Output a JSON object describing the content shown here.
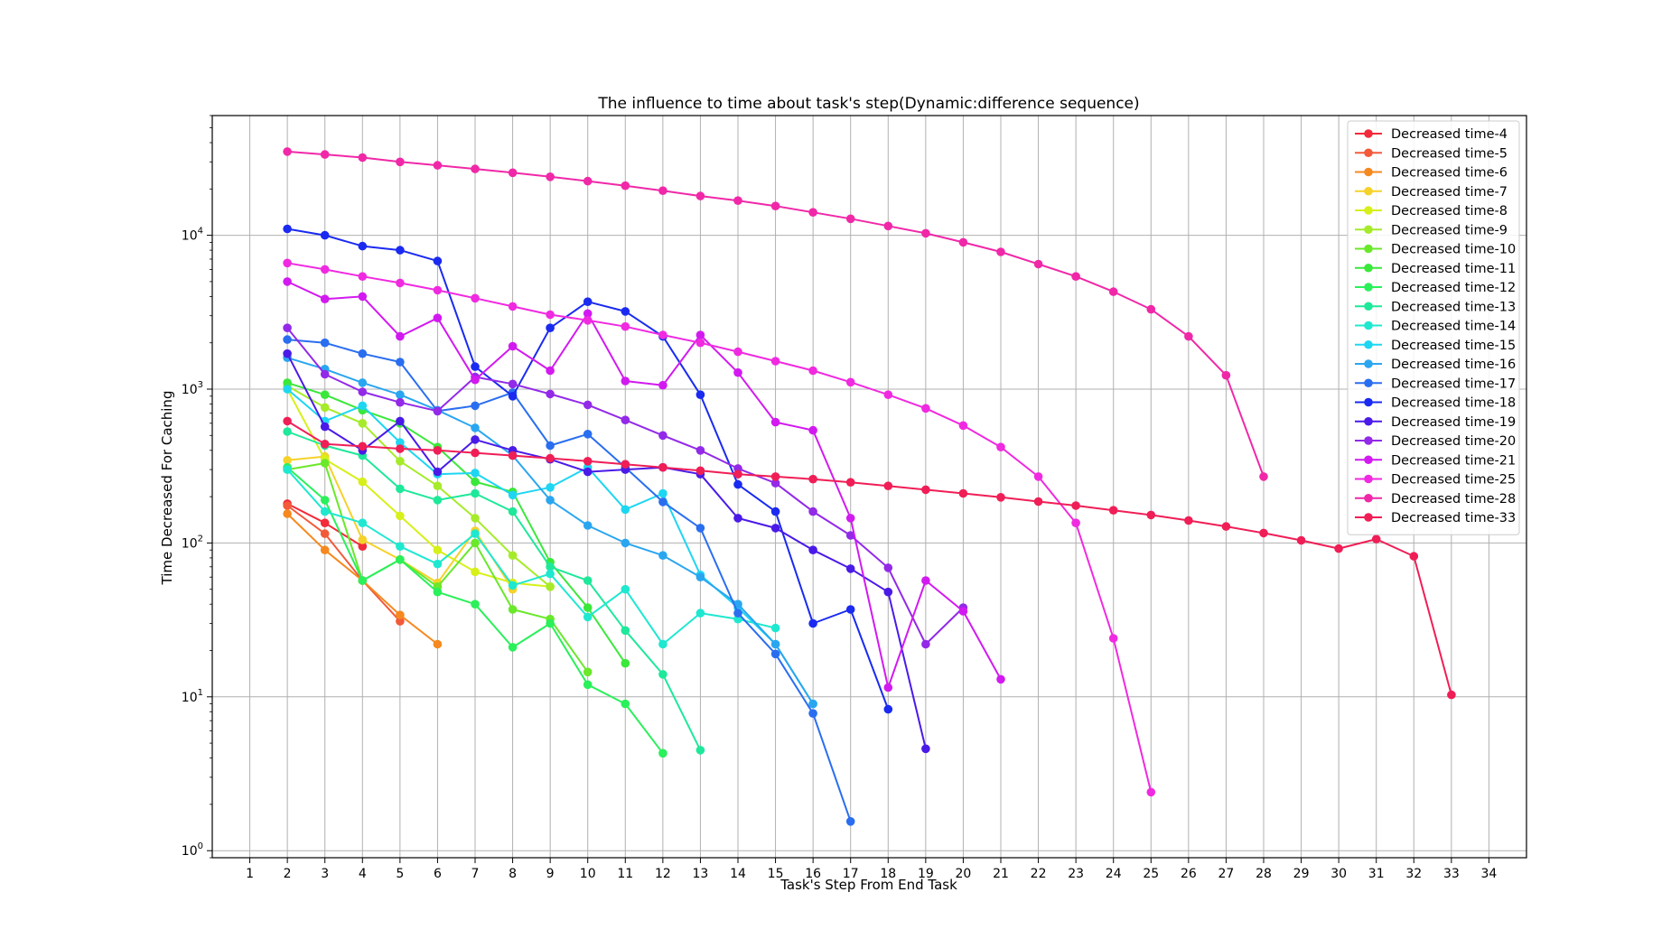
{
  "chart_data": {
    "type": "line",
    "title": "The influence to time about task's step(Dynamic:difference sequence)",
    "xlabel": "Task's Step From End Task",
    "ylabel": "Time Decreased For Caching",
    "xlim": [
      0,
      35
    ],
    "ylim": [
      0.9,
      60000
    ],
    "yscale": "log",
    "xticks": [
      1,
      2,
      3,
      4,
      5,
      6,
      7,
      8,
      9,
      10,
      11,
      12,
      13,
      14,
      15,
      16,
      17,
      18,
      19,
      20,
      21,
      22,
      23,
      24,
      25,
      26,
      27,
      28,
      29,
      30,
      31,
      32,
      33,
      34
    ],
    "yticks": [
      {
        "value": 1,
        "label": "10",
        "exp": "0"
      },
      {
        "value": 10,
        "label": "10",
        "exp": "1"
      },
      {
        "value": 100,
        "label": "10",
        "exp": "2"
      },
      {
        "value": 1000,
        "label": "10",
        "exp": "3"
      },
      {
        "value": 10000,
        "label": "10",
        "exp": "4"
      }
    ],
    "grid": true,
    "legend_position": "top-right",
    "series": [
      {
        "name": "Decreased time-4",
        "color": "#f22a3a",
        "x": [
          2,
          3,
          4
        ],
        "y": [
          180,
          135,
          95
        ]
      },
      {
        "name": "Decreased time-5",
        "color": "#f25a3a",
        "x": [
          2,
          3,
          4,
          5
        ],
        "y": [
          175,
          115,
          57,
          31
        ]
      },
      {
        "name": "Decreased time-6",
        "color": "#f5891f",
        "x": [
          2,
          3,
          4,
          5,
          6
        ],
        "y": [
          155,
          90,
          57,
          34,
          22
        ]
      },
      {
        "name": "Decreased time-7",
        "color": "#f5d22a",
        "x": [
          2,
          3,
          4,
          5,
          6,
          7,
          8
        ],
        "y": [
          345,
          365,
          105,
          78,
          55,
          120,
          50
        ]
      },
      {
        "name": "Decreased time-8",
        "color": "#d7f01a",
        "x": [
          2,
          3,
          4,
          5,
          6,
          7,
          8,
          9
        ],
        "y": [
          1000,
          350,
          250,
          150,
          90,
          65,
          55,
          52
        ]
      },
      {
        "name": "Decreased time-9",
        "color": "#a6eb2a",
        "x": [
          2,
          3,
          4,
          5,
          6,
          7,
          8,
          9
        ],
        "y": [
          1050,
          760,
          600,
          340,
          235,
          145,
          83,
          52
        ]
      },
      {
        "name": "Decreased time-10",
        "color": "#6ae82a",
        "x": [
          2,
          3,
          4,
          5,
          6,
          7,
          8,
          9,
          10
        ],
        "y": [
          300,
          330,
          57,
          78,
          52,
          100,
          37,
          32,
          14.5
        ]
      },
      {
        "name": "Decreased time-11",
        "color": "#3ae83a",
        "x": [
          2,
          3,
          4,
          5,
          6,
          7,
          8,
          9,
          10,
          11
        ],
        "y": [
          1100,
          920,
          730,
          600,
          420,
          250,
          215,
          75,
          38,
          16.5
        ]
      },
      {
        "name": "Decreased time-12",
        "color": "#2af05a",
        "x": [
          2,
          3,
          4,
          5,
          6,
          7,
          8,
          9,
          10,
          11,
          12
        ],
        "y": [
          310,
          190,
          57,
          78,
          48,
          40,
          21,
          30,
          12,
          9,
          4.3
        ]
      },
      {
        "name": "Decreased time-13",
        "color": "#1ee89a",
        "x": [
          2,
          3,
          4,
          5,
          6,
          7,
          8,
          9,
          10,
          11,
          12,
          13
        ],
        "y": [
          530,
          430,
          370,
          225,
          190,
          210,
          160,
          70,
          57,
          27,
          14,
          4.5
        ]
      },
      {
        "name": "Decreased time-14",
        "color": "#1fe8d0",
        "x": [
          2,
          3,
          4,
          5,
          6,
          7,
          8,
          9,
          10,
          11,
          12,
          13,
          14,
          15
        ],
        "y": [
          300,
          160,
          135,
          95,
          73,
          115,
          53,
          63,
          33,
          50,
          22,
          35,
          32,
          28
        ]
      },
      {
        "name": "Decreased time-15",
        "color": "#1ed6f2",
        "x": [
          2,
          3,
          4,
          5,
          6,
          7,
          8,
          9,
          10,
          11,
          12,
          13,
          14,
          15,
          16
        ],
        "y": [
          1000,
          620,
          780,
          450,
          280,
          285,
          205,
          230,
          310,
          165,
          210,
          62,
          38,
          22,
          9
        ]
      },
      {
        "name": "Decreased time-16",
        "color": "#2aa6f0",
        "x": [
          2,
          3,
          4,
          5,
          6,
          7,
          8,
          9,
          10,
          11,
          12,
          13,
          14,
          15,
          16
        ],
        "y": [
          1600,
          1350,
          1100,
          920,
          730,
          560,
          370,
          190,
          130,
          100,
          83,
          60,
          40,
          22,
          9
        ]
      },
      {
        "name": "Decreased time-17",
        "color": "#2a6ef0",
        "x": [
          2,
          3,
          4,
          5,
          6,
          7,
          8,
          9,
          10,
          11,
          12,
          13,
          14,
          15,
          16,
          17
        ],
        "y": [
          2100,
          2000,
          1700,
          1500,
          720,
          780,
          950,
          430,
          510,
          310,
          185,
          125,
          35,
          19,
          7.8,
          1.55
        ]
      },
      {
        "name": "Decreased time-18",
        "color": "#1a2af0",
        "x": [
          2,
          3,
          4,
          5,
          6,
          7,
          8,
          9,
          10,
          11,
          12,
          13,
          14,
          15,
          16,
          17,
          18
        ],
        "y": [
          11000,
          10000,
          8500,
          8000,
          6800,
          1400,
          900,
          2500,
          3700,
          3200,
          2200,
          920,
          240,
          160,
          30,
          37,
          8.3
        ]
      },
      {
        "name": "Decreased time-19",
        "color": "#4a1ae8",
        "x": [
          2,
          3,
          4,
          5,
          6,
          7,
          8,
          9,
          10,
          11,
          12,
          13,
          14,
          15,
          16,
          17,
          18,
          19
        ],
        "y": [
          1700,
          570,
          400,
          620,
          290,
          470,
          400,
          350,
          290,
          300,
          310,
          280,
          145,
          125,
          90,
          68,
          48,
          4.6
        ]
      },
      {
        "name": "Decreased time-20",
        "color": "#922ae8",
        "x": [
          2,
          3,
          4,
          5,
          6,
          7,
          8,
          9,
          10,
          11,
          12,
          13,
          14,
          15,
          16,
          17,
          18,
          19,
          20
        ],
        "y": [
          2500,
          1250,
          960,
          820,
          720,
          1200,
          1080,
          930,
          790,
          630,
          500,
          400,
          305,
          245,
          160,
          112,
          69,
          22,
          38
        ]
      },
      {
        "name": "Decreased time-21",
        "color": "#d21af0",
        "x": [
          2,
          3,
          4,
          5,
          6,
          7,
          8,
          9,
          10,
          11,
          12,
          13,
          14,
          15,
          16,
          17,
          18,
          19,
          20,
          21
        ],
        "y": [
          5000,
          3850,
          4000,
          2200,
          2900,
          1150,
          1900,
          1320,
          3100,
          1130,
          1060,
          2250,
          1280,
          610,
          540,
          145,
          11.5,
          57,
          36,
          13
        ]
      },
      {
        "name": "Decreased time-25",
        "color": "#f02ae0",
        "x": [
          2,
          3,
          4,
          5,
          6,
          7,
          8,
          9,
          10,
          11,
          12,
          13,
          14,
          15,
          16,
          17,
          18,
          19,
          20,
          21,
          22,
          23,
          24,
          25
        ],
        "y": [
          6600,
          6000,
          5400,
          4900,
          4400,
          3900,
          3450,
          3050,
          2800,
          2550,
          2250,
          2000,
          1750,
          1520,
          1320,
          1110,
          920,
          750,
          580,
          420,
          270,
          135,
          24,
          2.4
        ]
      },
      {
        "name": "Decreased time-28",
        "color": "#f028a8",
        "x": [
          2,
          3,
          4,
          5,
          6,
          7,
          8,
          9,
          10,
          11,
          12,
          13,
          14,
          15,
          16,
          17,
          18,
          19,
          20,
          21,
          22,
          23,
          24,
          25,
          26,
          27,
          28
        ],
        "y": [
          35000,
          33500,
          32000,
          30000,
          28500,
          27000,
          25500,
          24000,
          22500,
          21000,
          19500,
          18000,
          16800,
          15500,
          14100,
          12800,
          11500,
          10300,
          9000,
          7800,
          6500,
          5400,
          4300,
          3300,
          2200,
          1230,
          270
        ]
      },
      {
        "name": "Decreased time-33",
        "color": "#f01e56",
        "x": [
          2,
          3,
          4,
          5,
          6,
          7,
          8,
          9,
          10,
          11,
          12,
          13,
          14,
          15,
          16,
          17,
          18,
          19,
          20,
          21,
          22,
          23,
          24,
          25,
          26,
          27,
          28,
          29,
          30,
          31,
          32,
          33
        ],
        "y": [
          620,
          440,
          425,
          410,
          400,
          385,
          370,
          355,
          340,
          325,
          310,
          295,
          280,
          270,
          260,
          248,
          235,
          222,
          210,
          198,
          186,
          175,
          163,
          152,
          140,
          128,
          116,
          104,
          92,
          106,
          82,
          10.3
        ]
      }
    ]
  }
}
